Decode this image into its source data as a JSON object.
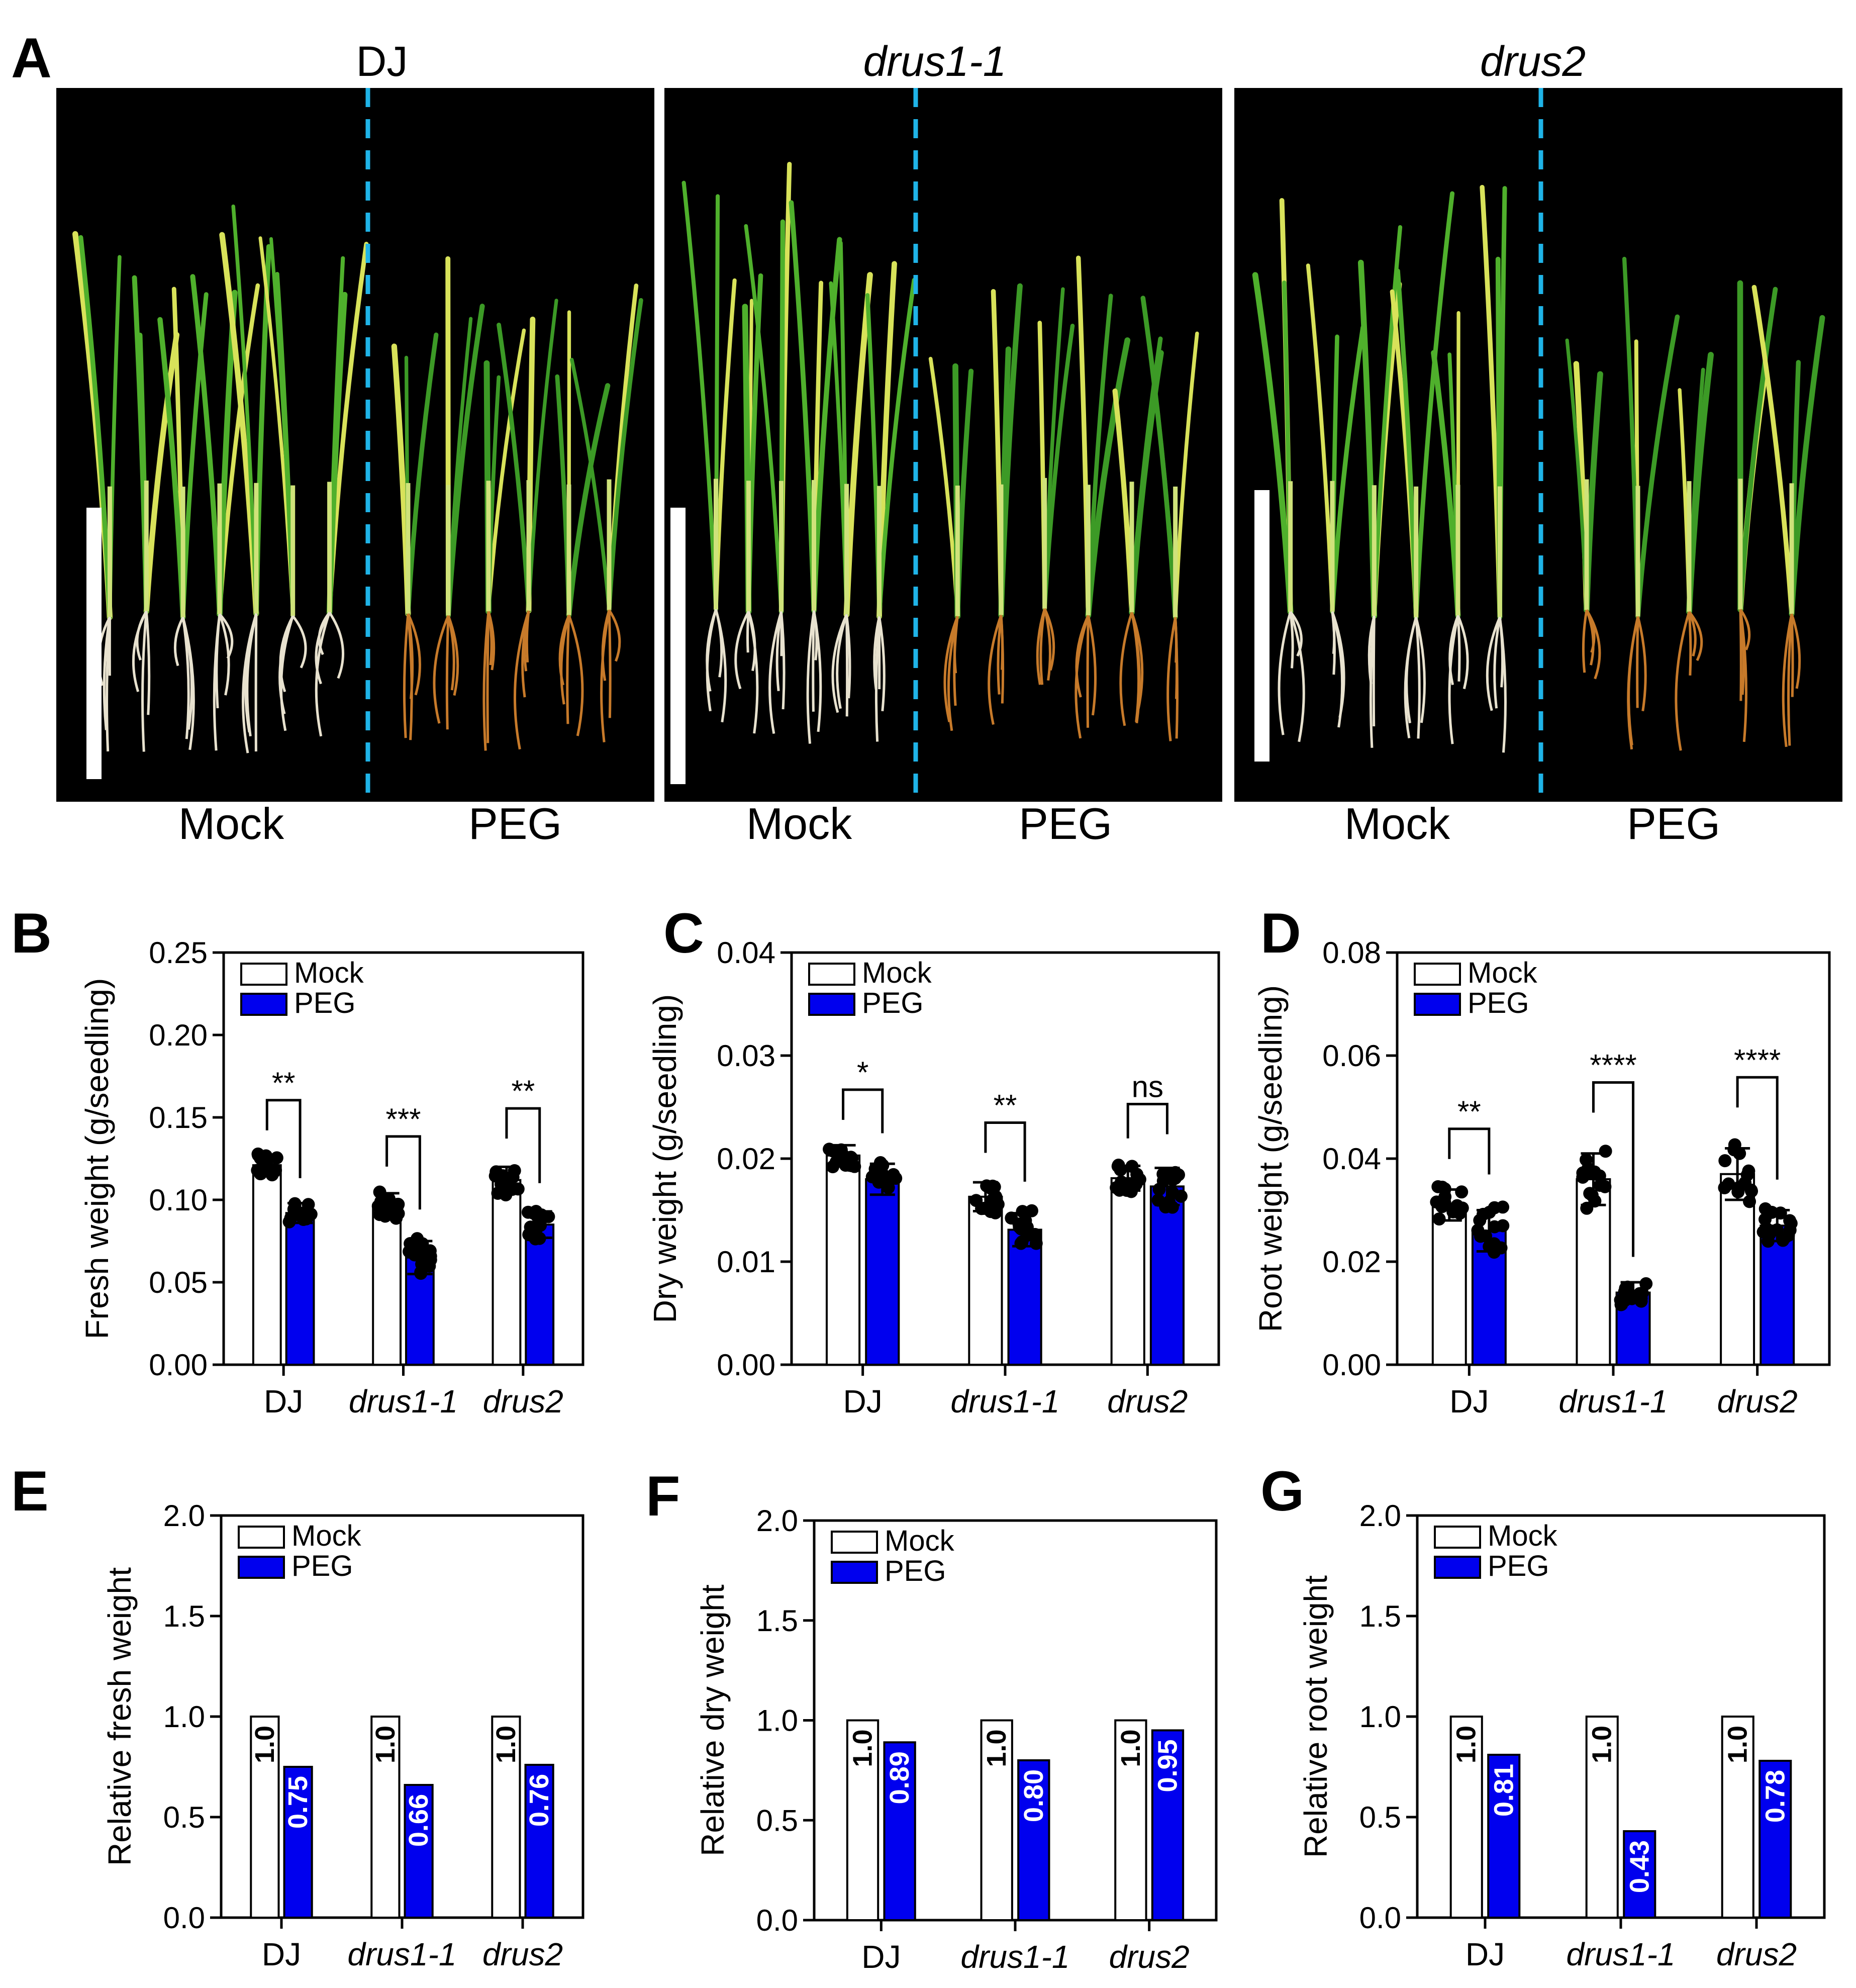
{
  "panel_a": {
    "letter": "A",
    "photos": [
      {
        "title": "DJ",
        "italic": false,
        "left_label": "Mock",
        "right_label": "PEG"
      },
      {
        "title": "drus1-1",
        "italic": true,
        "left_label": "Mock",
        "right_label": "PEG"
      },
      {
        "title": "drus2",
        "italic": true,
        "left_label": "Mock",
        "right_label": "PEG"
      }
    ],
    "colors": {
      "divider": "#1fb4e8",
      "scale_bar": "#ffffff",
      "background": "#000000"
    }
  },
  "legend": {
    "mock": "Mock",
    "peg": "PEG"
  },
  "colors": {
    "mock_fill": "#ffffff",
    "peg_fill": "#0000ee",
    "dots": "#000000"
  },
  "chart_data": [
    {
      "panel": "B",
      "type": "bar",
      "ylabel": "Fresh weight (g/seedling)",
      "ylim": [
        0,
        0.25
      ],
      "yticks": [
        "0.00",
        "0.05",
        "0.10",
        "0.15",
        "0.20",
        "0.25"
      ],
      "categories": [
        "DJ",
        "drus1-1",
        "drus2"
      ],
      "series": [
        {
          "name": "Mock",
          "values": [
            0.121,
            0.097,
            0.112
          ],
          "errors": [
            0.006,
            0.007,
            0.008
          ]
        },
        {
          "name": "PEG",
          "values": [
            0.092,
            0.065,
            0.085
          ],
          "errors": [
            0.006,
            0.01,
            0.008
          ]
        }
      ],
      "significance": [
        "**",
        "***",
        "**"
      ],
      "legend_position": "top-left"
    },
    {
      "panel": "C",
      "type": "bar",
      "ylabel": "Dry weight (g/seedling)",
      "ylim": [
        0,
        0.04
      ],
      "yticks": [
        "0.00",
        "0.01",
        "0.02",
        "0.03",
        "0.04"
      ],
      "categories": [
        "DJ",
        "drus1-1",
        "drus2"
      ],
      "series": [
        {
          "name": "Mock",
          "values": [
            0.0203,
            0.0163,
            0.0181
          ],
          "errors": [
            0.001,
            0.0014,
            0.0012
          ]
        },
        {
          "name": "PEG",
          "values": [
            0.018,
            0.0131,
            0.0173
          ],
          "errors": [
            0.0015,
            0.0016,
            0.0018
          ]
        }
      ],
      "significance": [
        "*",
        "**",
        "ns"
      ],
      "legend_position": "top-left"
    },
    {
      "panel": "D",
      "type": "bar",
      "ylabel": "Root weight (g/seedling)",
      "ylim": [
        0,
        0.08
      ],
      "yticks": [
        "0.00",
        "0.02",
        "0.04",
        "0.06",
        "0.08"
      ],
      "categories": [
        "DJ",
        "drus1-1",
        "drus2"
      ],
      "series": [
        {
          "name": "Mock",
          "values": [
            0.031,
            0.036,
            0.037
          ],
          "errors": [
            0.003,
            0.005,
            0.005
          ]
        },
        {
          "name": "PEG",
          "values": [
            0.026,
            0.014,
            0.027
          ],
          "errors": [
            0.004,
            0.002,
            0.003
          ]
        }
      ],
      "significance": [
        "**",
        "****",
        "****"
      ],
      "legend_position": "top-left"
    },
    {
      "panel": "E",
      "type": "bar",
      "ylabel": "Relative fresh weight",
      "ylim": [
        0,
        2.0
      ],
      "yticks": [
        "0.0",
        "0.5",
        "1.0",
        "1.5",
        "2.0"
      ],
      "categories": [
        "DJ",
        "drus1-1",
        "drus2"
      ],
      "series": [
        {
          "name": "Mock",
          "values": [
            1.0,
            1.0,
            1.0
          ],
          "labels": [
            "1.0",
            "1.0",
            "1.0"
          ]
        },
        {
          "name": "PEG",
          "values": [
            0.75,
            0.66,
            0.76
          ],
          "labels": [
            "0.75",
            "0.66",
            "0.76"
          ]
        }
      ],
      "legend_position": "top-left"
    },
    {
      "panel": "F",
      "type": "bar",
      "ylabel": "Relative dry weight",
      "ylim": [
        0,
        2.0
      ],
      "yticks": [
        "0.0",
        "0.5",
        "1.0",
        "1.5",
        "2.0"
      ],
      "categories": [
        "DJ",
        "drus1-1",
        "drus2"
      ],
      "series": [
        {
          "name": "Mock",
          "values": [
            1.0,
            1.0,
            1.0
          ],
          "labels": [
            "1.0",
            "1.0",
            "1.0"
          ]
        },
        {
          "name": "PEG",
          "values": [
            0.89,
            0.8,
            0.95
          ],
          "labels": [
            "0.89",
            "0.80",
            "0.95"
          ]
        }
      ],
      "legend_position": "top-left"
    },
    {
      "panel": "G",
      "type": "bar",
      "ylabel": "Relative root weight",
      "ylim": [
        0,
        2.0
      ],
      "yticks": [
        "0.0",
        "0.5",
        "1.0",
        "1.5",
        "2.0"
      ],
      "categories": [
        "DJ",
        "drus1-1",
        "drus2"
      ],
      "series": [
        {
          "name": "Mock",
          "values": [
            1.0,
            1.0,
            1.0
          ],
          "labels": [
            "1.0",
            "1.0",
            "1.0"
          ]
        },
        {
          "name": "PEG",
          "values": [
            0.81,
            0.43,
            0.78
          ],
          "labels": [
            "0.81",
            "0.43",
            "0.78"
          ]
        }
      ],
      "legend_position": "top-left"
    }
  ]
}
